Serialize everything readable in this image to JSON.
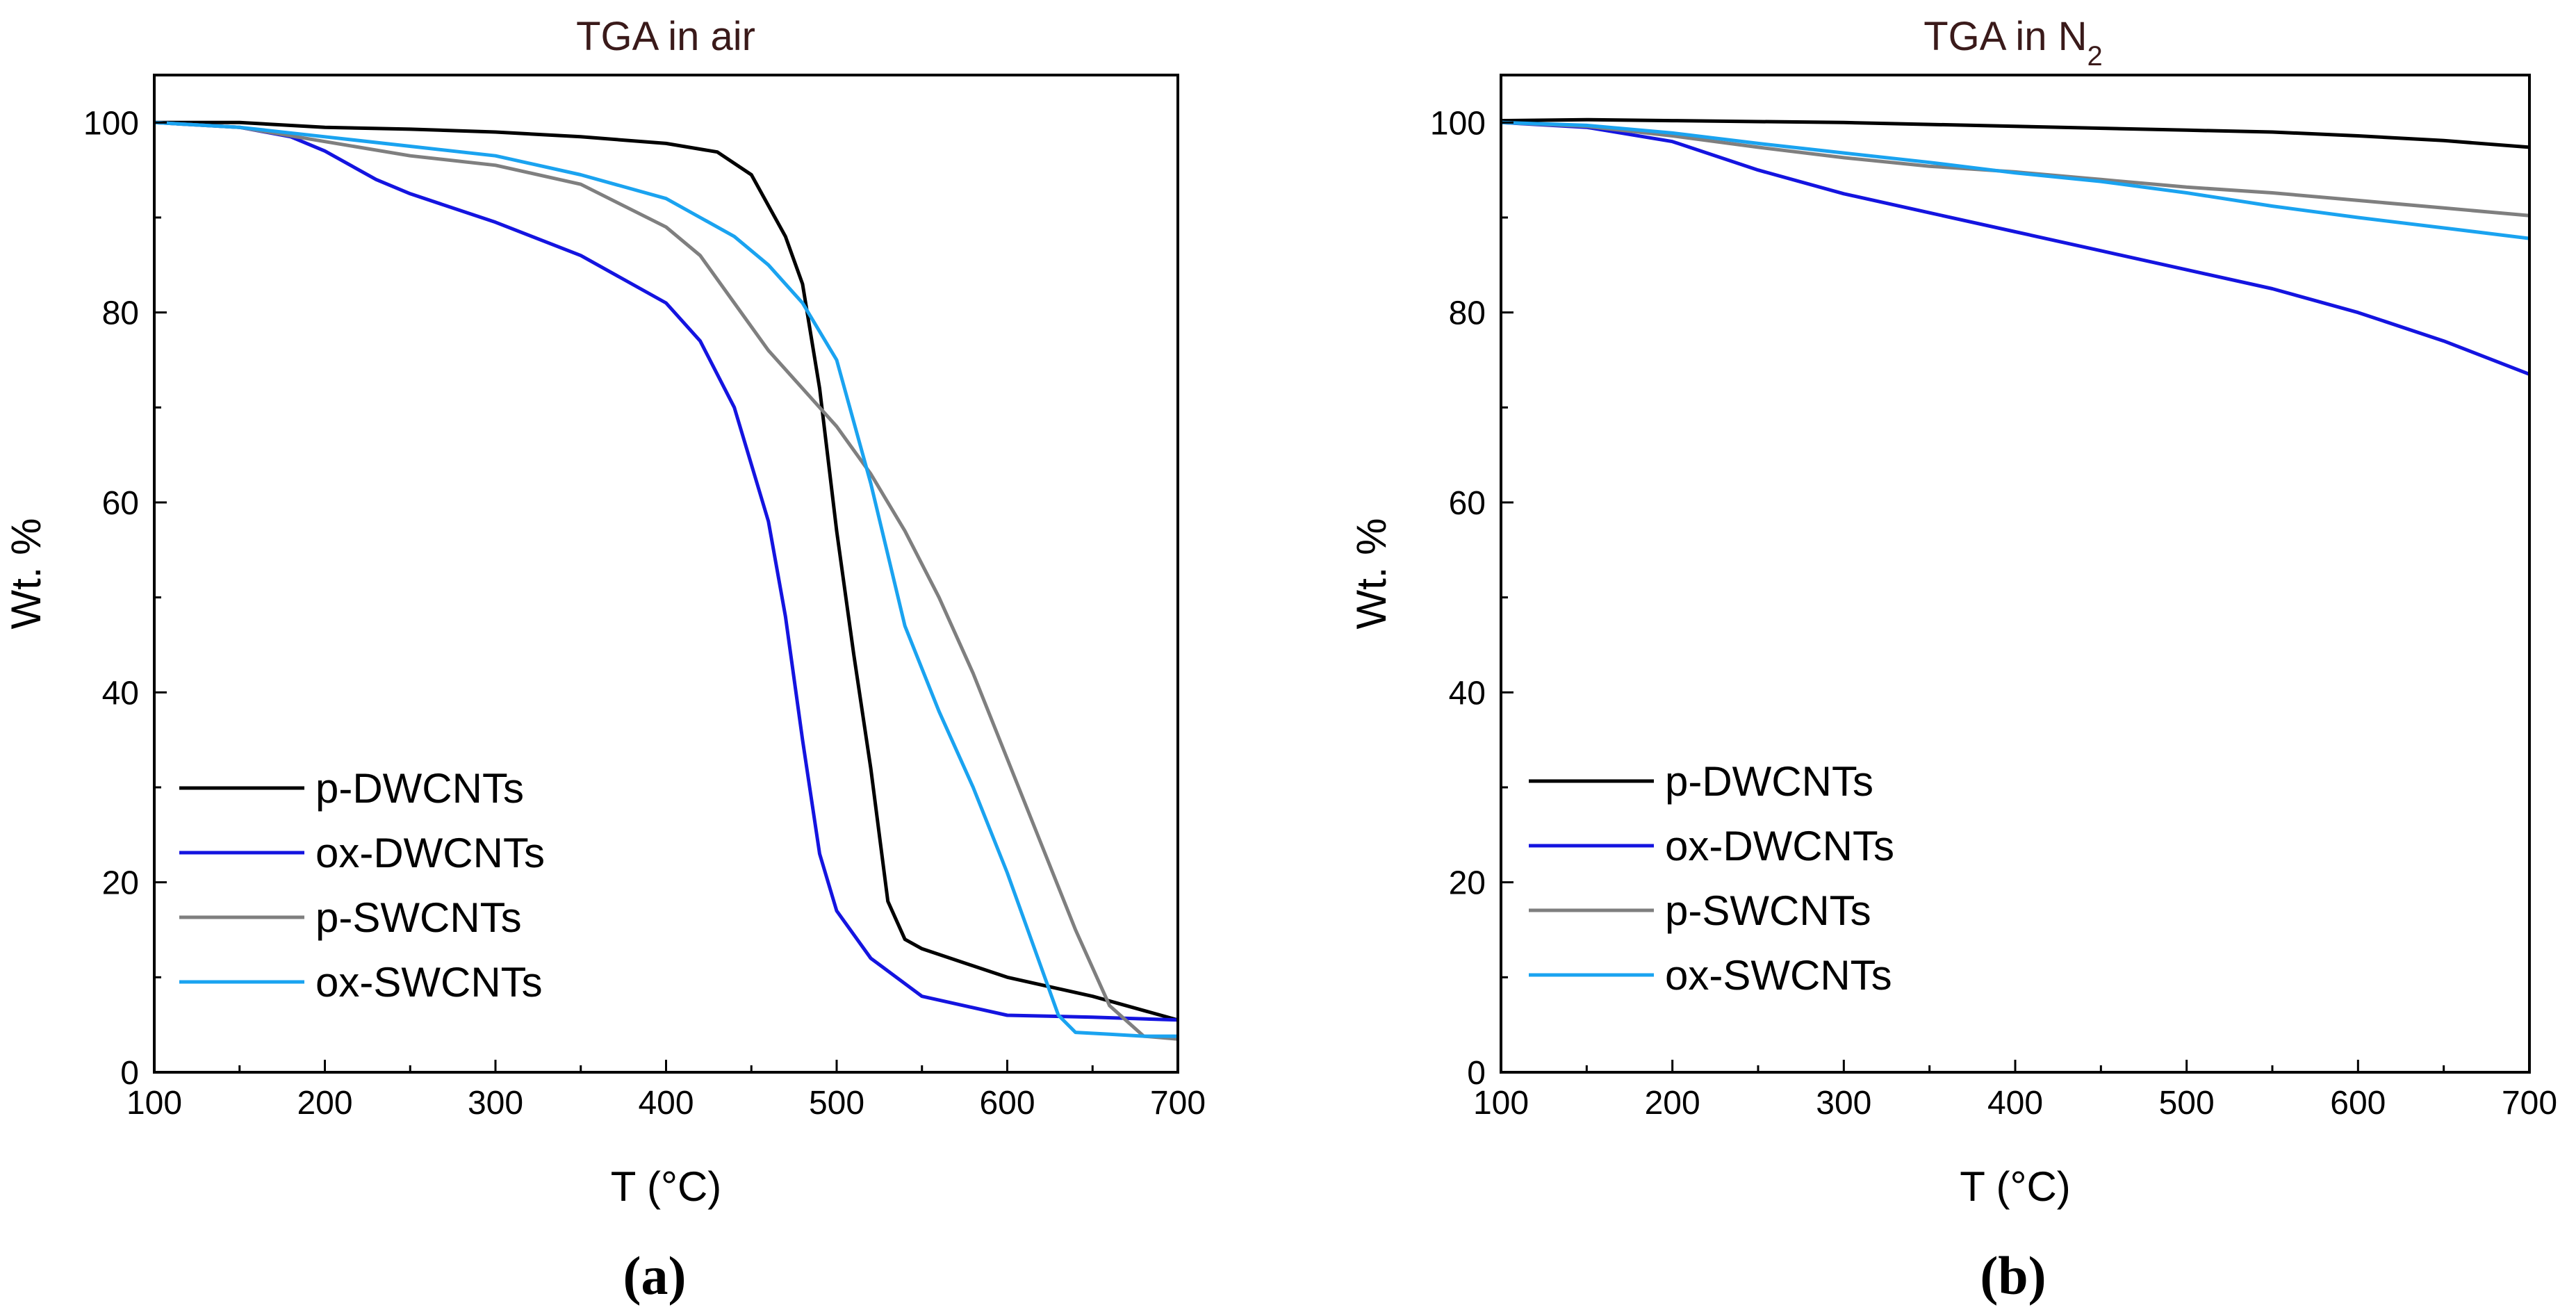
{
  "chart_data": [
    {
      "type": "line",
      "title": "TGA in air",
      "panel_label": "(a)",
      "xlabel": "T (°C)",
      "ylabel": "Wt. %",
      "xlim": [
        100,
        700
      ],
      "ylim": [
        0,
        105
      ],
      "xticks": [
        100,
        200,
        300,
        400,
        500,
        600,
        700
      ],
      "yticks": [
        0,
        20,
        40,
        60,
        80,
        100
      ],
      "legend_position": "bottom-left",
      "series": [
        {
          "name": "p-DWCNTs",
          "color": "#000000",
          "x": [
            100,
            150,
            200,
            250,
            300,
            350,
            400,
            430,
            450,
            470,
            480,
            490,
            500,
            510,
            520,
            530,
            540,
            550,
            600,
            650,
            700
          ],
          "y": [
            100,
            100,
            99.5,
            99.3,
            99,
            98.5,
            97.8,
            96.9,
            94.5,
            88,
            83,
            72,
            57,
            44,
            32,
            18,
            14,
            13,
            10,
            8,
            5.5
          ]
        },
        {
          "name": "ox-DWCNTs",
          "color": "#1414e0",
          "x": [
            100,
            150,
            180,
            200,
            230,
            250,
            300,
            350,
            400,
            420,
            440,
            460,
            470,
            480,
            490,
            500,
            520,
            550,
            600,
            650,
            700
          ],
          "y": [
            100,
            99.5,
            98.5,
            97,
            94,
            92.5,
            89.5,
            86,
            81,
            77,
            70,
            58,
            48,
            35,
            23,
            17,
            12,
            8,
            6,
            5.8,
            5.5
          ]
        },
        {
          "name": "p-SWCNTs",
          "color": "#7f7f7f",
          "x": [
            100,
            150,
            200,
            250,
            300,
            350,
            400,
            420,
            440,
            460,
            480,
            500,
            520,
            540,
            560,
            580,
            600,
            620,
            640,
            660,
            680,
            700
          ],
          "y": [
            100,
            99.5,
            98,
            96.5,
            95.5,
            93.5,
            89,
            86,
            81,
            76,
            72,
            68,
            63,
            57,
            50,
            42,
            33,
            24,
            15,
            7,
            3.8,
            3.5
          ]
        },
        {
          "name": "ox-SWCNTs",
          "color": "#1aa3f0",
          "x": [
            100,
            150,
            200,
            250,
            300,
            350,
            400,
            420,
            440,
            460,
            480,
            500,
            520,
            540,
            560,
            580,
            600,
            620,
            630,
            640,
            660,
            680,
            700
          ],
          "y": [
            100,
            99.5,
            98.5,
            97.5,
            96.5,
            94.5,
            92,
            90,
            88,
            85,
            81,
            75,
            62,
            47,
            38,
            30,
            21,
            11,
            6,
            4.2,
            4,
            3.8,
            3.8
          ]
        }
      ]
    },
    {
      "type": "line",
      "title": "TGA in N",
      "title_subscript": "2",
      "panel_label": "(b)",
      "xlabel": "T (°C)",
      "ylabel": "Wt. %",
      "xlim": [
        100,
        700
      ],
      "ylim": [
        0,
        105
      ],
      "xticks": [
        100,
        200,
        300,
        400,
        500,
        600,
        700
      ],
      "yticks": [
        0,
        20,
        40,
        60,
        80,
        100
      ],
      "legend_position": "bottom-left",
      "series": [
        {
          "name": "p-DWCNTs",
          "color": "#000000",
          "x": [
            100,
            150,
            200,
            300,
            400,
            500,
            550,
            600,
            650,
            700
          ],
          "y": [
            100.2,
            100.3,
            100.2,
            100,
            99.6,
            99.2,
            99,
            98.6,
            98.1,
            97.4
          ]
        },
        {
          "name": "ox-DWCNTs",
          "color": "#1414e0",
          "x": [
            100,
            150,
            200,
            250,
            300,
            350,
            400,
            450,
            500,
            550,
            600,
            650,
            700
          ],
          "y": [
            100,
            99.5,
            98,
            95,
            92.5,
            90.5,
            88.5,
            86.5,
            84.5,
            82.5,
            80,
            77,
            73.5
          ]
        },
        {
          "name": "p-SWCNTs",
          "color": "#7f7f7f",
          "x": [
            100,
            150,
            200,
            250,
            300,
            350,
            400,
            450,
            500,
            550,
            600,
            650,
            700
          ],
          "y": [
            100,
            99.6,
            98.6,
            97.4,
            96.3,
            95.4,
            94.8,
            94,
            93.2,
            92.6,
            91.8,
            91,
            90.2
          ]
        },
        {
          "name": "ox-SWCNTs",
          "color": "#1aa3f0",
          "x": [
            100,
            150,
            200,
            250,
            300,
            350,
            400,
            450,
            500,
            550,
            600,
            650,
            700
          ],
          "y": [
            100,
            99.7,
            98.9,
            97.8,
            96.8,
            95.8,
            94.7,
            93.8,
            92.6,
            91.2,
            90,
            88.9,
            87.8
          ]
        }
      ]
    }
  ]
}
